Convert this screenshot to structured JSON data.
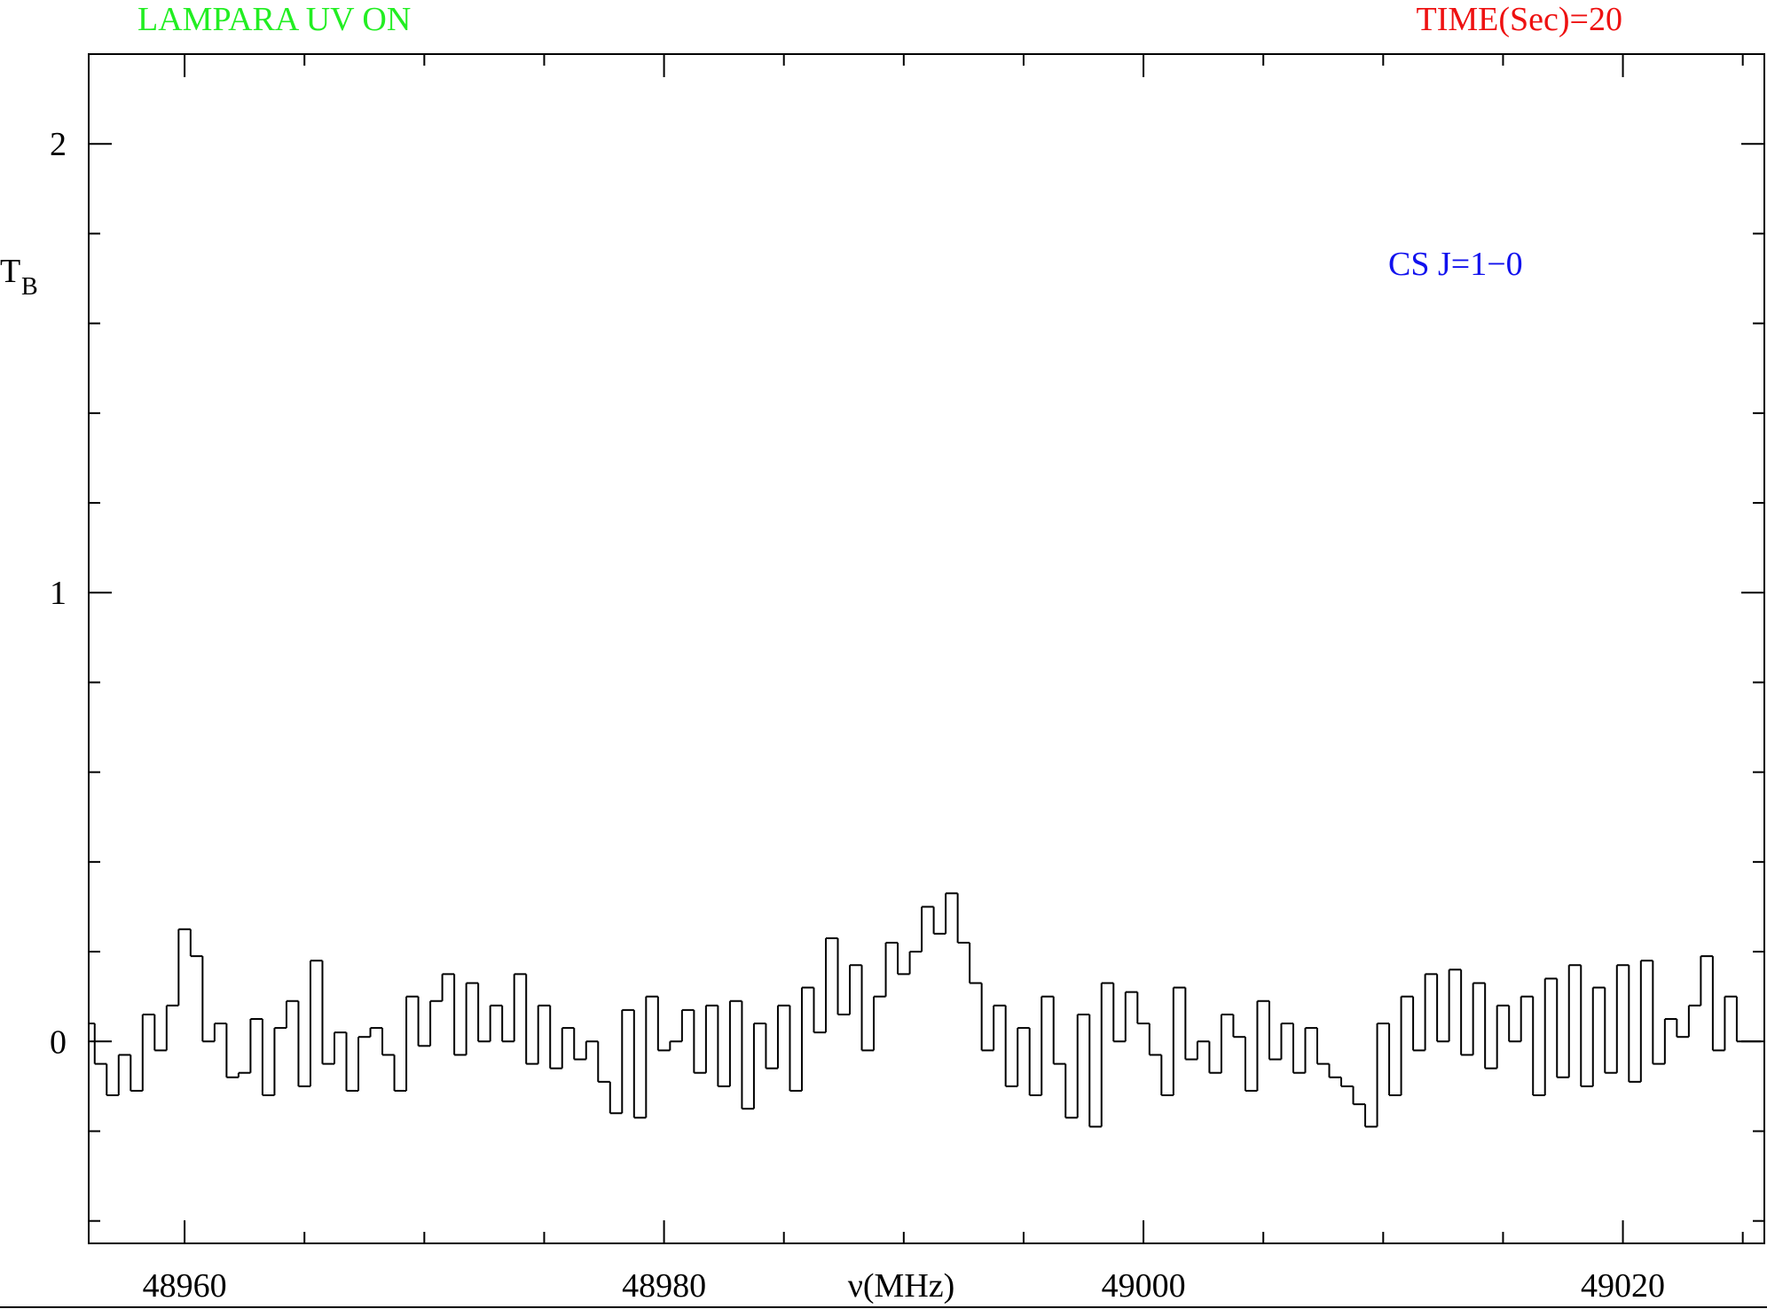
{
  "chart_data": {
    "type": "step",
    "title": "LAMPARA UV ON",
    "title_color": "#22ee22",
    "subtitle": "TIME(Sec)=20",
    "subtitle_color": "#ee1111",
    "annotation": "CS J=1−0",
    "annotation_color": "#1111ee",
    "xlabel": "ν(MHz)",
    "ylabel": "T",
    "ylabel_sub": "B",
    "xlim": [
      48956,
      49025.9
    ],
    "ylim": [
      -0.45,
      2.2
    ],
    "xticks": [
      48960,
      48980,
      49000,
      49020
    ],
    "xticks_minor": [
      48965,
      48970,
      48975,
      48985,
      48990,
      48995,
      49005,
      49010,
      49015,
      49025
    ],
    "yticks": [
      0,
      1,
      2
    ],
    "yticks_minor": [
      -0.4,
      -0.2,
      0.2,
      0.4,
      0.6,
      0.8,
      1.2,
      1.4,
      1.6,
      1.8
    ],
    "step": 0.5,
    "x": [
      48956,
      48956.5,
      48957,
      48957.5,
      48958,
      48958.5,
      48959,
      48959.5,
      48960,
      48960.5,
      48961,
      48961.5,
      48962,
      48962.5,
      48963,
      48963.5,
      48964,
      48964.5,
      48965,
      48965.5,
      48966,
      48966.5,
      48967,
      48967.5,
      48968,
      48968.5,
      48969,
      48969.5,
      48970,
      48970.5,
      48971,
      48971.5,
      48972,
      48972.5,
      48973,
      48973.5,
      48974,
      48974.5,
      48975,
      48975.5,
      48976,
      48976.5,
      48977,
      48977.5,
      48978,
      48978.5,
      48979,
      48979.5,
      48980,
      48980.5,
      48981,
      48981.5,
      48982,
      48982.5,
      48983,
      48983.5,
      48984,
      48984.5,
      48985,
      48985.5,
      48986,
      48986.5,
      48987,
      48987.5,
      48988,
      48988.5,
      48989,
      48989.5,
      48990,
      48990.5,
      48991,
      48991.5,
      48992,
      48992.5,
      48993,
      48993.5,
      48994,
      48994.5,
      48995,
      48995.5,
      48996,
      48996.5,
      48997,
      48997.5,
      48998,
      48998.5,
      48999,
      48999.5,
      49000,
      49000.5,
      49001,
      49001.5,
      49002,
      49002.5,
      49003,
      49003.5,
      49004,
      49004.5,
      49005,
      49005.5,
      49006,
      49006.5,
      49007,
      49007.5,
      49008,
      49008.5,
      49009,
      49009.5,
      49010,
      49010.5,
      49011,
      49011.5,
      49012,
      49012.5,
      49013,
      49013.5,
      49014,
      49014.5,
      49015,
      49015.5,
      49016,
      49016.5,
      49017,
      49017.5,
      49018,
      49018.5,
      49019,
      49019.5,
      49020,
      49020.5,
      49021,
      49021.5,
      49022,
      49022.5,
      49023,
      49023.5,
      49024,
      49024.5,
      49025,
      49025.5
    ],
    "series": [
      {
        "color": "#000000",
        "values": [
          0.04,
          -0.05,
          -0.12,
          -0.03,
          -0.11,
          0.06,
          -0.02,
          0.08,
          0.25,
          0.19,
          0.0,
          0.04,
          -0.08,
          -0.07,
          0.05,
          -0.12,
          0.03,
          0.09,
          -0.1,
          0.18,
          -0.05,
          0.02,
          -0.11,
          0.01,
          0.03,
          -0.03,
          -0.11,
          0.1,
          -0.01,
          0.09,
          0.15,
          -0.03,
          0.13,
          0.0,
          0.08,
          0.0,
          0.15,
          -0.05,
          0.08,
          -0.06,
          0.03,
          -0.04,
          0.0,
          -0.09,
          -0.16,
          0.07,
          -0.17,
          0.1,
          -0.02,
          0.0,
          0.07,
          -0.07,
          0.08,
          -0.1,
          0.09,
          -0.15,
          0.04,
          -0.06,
          0.08,
          -0.11,
          0.12,
          0.02,
          0.23,
          0.06,
          0.17,
          -0.02,
          0.1,
          0.22,
          0.15,
          0.2,
          0.3,
          0.24,
          0.33,
          0.22,
          0.13,
          -0.02,
          0.08,
          -0.1,
          0.03,
          -0.12,
          0.1,
          -0.05,
          -0.17,
          0.06,
          -0.19,
          0.13,
          0.0,
          0.11,
          0.04,
          -0.03,
          -0.12,
          0.12,
          -0.04,
          0.0,
          -0.07,
          0.06,
          0.01,
          -0.11,
          0.09,
          -0.04,
          0.04,
          -0.07,
          0.03,
          -0.05,
          -0.08,
          -0.1,
          -0.14,
          -0.19,
          0.04,
          -0.12,
          0.1,
          -0.02,
          0.15,
          0.0,
          0.16,
          -0.03,
          0.13,
          -0.06,
          0.08,
          0.0,
          0.1,
          -0.12,
          0.14,
          -0.08,
          0.17,
          -0.1,
          0.12,
          -0.07,
          0.17,
          -0.09,
          0.18,
          -0.05,
          0.05,
          0.01,
          0.08,
          0.19,
          -0.02,
          0.1,
          0.0,
          0.0
        ]
      }
    ]
  }
}
